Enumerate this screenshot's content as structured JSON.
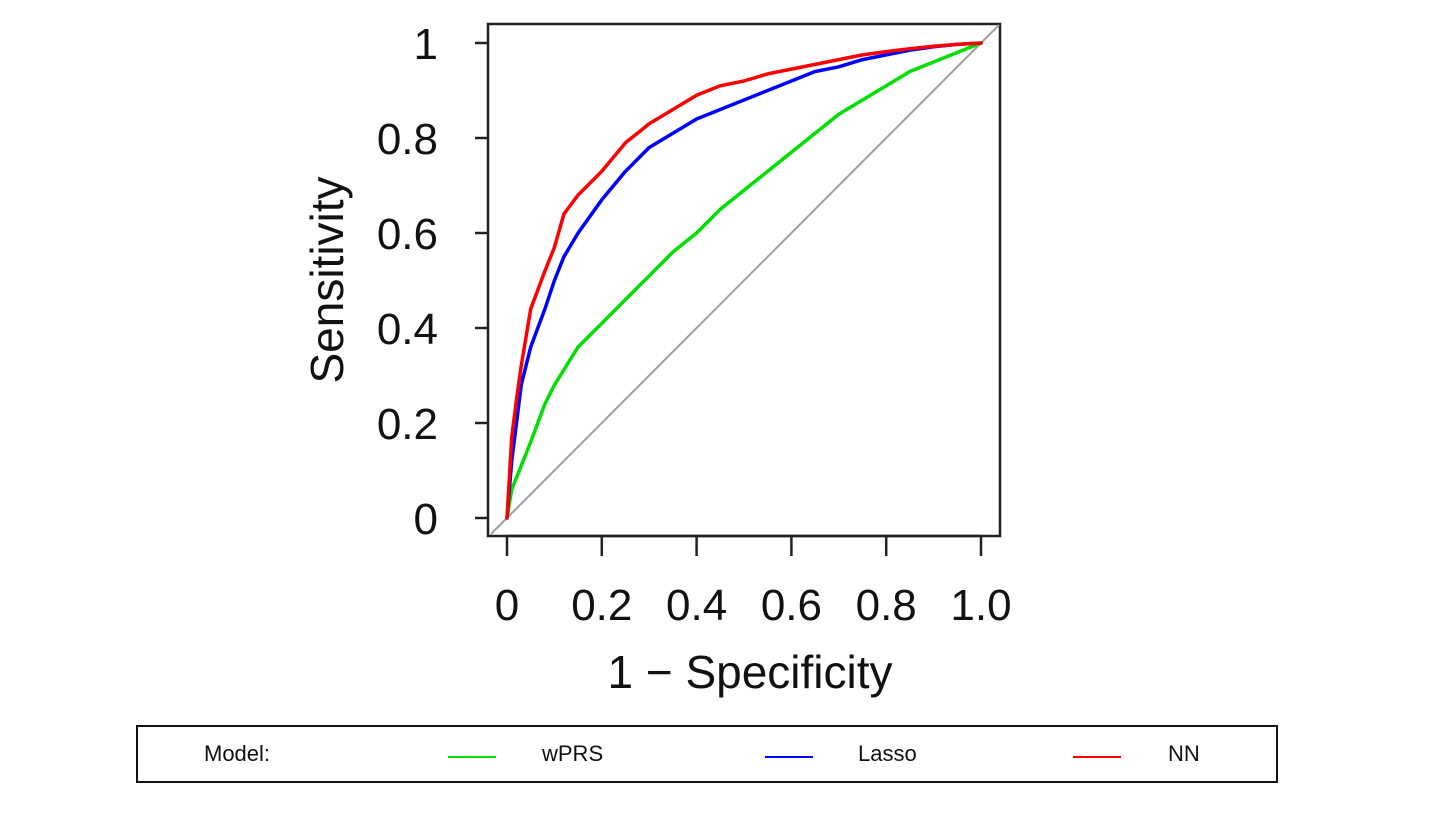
{
  "chart_data": {
    "type": "line",
    "title": "",
    "xlabel": "1 − Specificity",
    "ylabel": "Sensitivity",
    "xlim": [
      0,
      1
    ],
    "ylim": [
      0,
      1
    ],
    "x_ticks": [
      0,
      0.2,
      0.4,
      0.6,
      0.8,
      1.0
    ],
    "x_tick_labels": [
      "0",
      "0.2",
      "0.4",
      "0.6",
      "0.8",
      "1.0"
    ],
    "y_ticks": [
      0,
      0.2,
      0.4,
      0.6,
      0.8,
      1
    ],
    "y_tick_labels": [
      "0",
      "0.2",
      "0.4",
      "0.6",
      "0.8",
      "1"
    ],
    "grid": false,
    "legend_placement": "bottom",
    "reference_line": {
      "x": [
        0,
        1
      ],
      "y": [
        0,
        1
      ],
      "color": "#a0a0a0"
    },
    "series": [
      {
        "name": "wPRS",
        "color": "#00e000",
        "x": [
          0,
          0.01,
          0.03,
          0.05,
          0.08,
          0.1,
          0.15,
          0.2,
          0.25,
          0.3,
          0.35,
          0.4,
          0.45,
          0.5,
          0.55,
          0.6,
          0.65,
          0.7,
          0.75,
          0.8,
          0.85,
          0.9,
          0.95,
          1.0
        ],
        "y": [
          0,
          0.06,
          0.11,
          0.16,
          0.24,
          0.28,
          0.36,
          0.41,
          0.46,
          0.51,
          0.56,
          0.6,
          0.65,
          0.69,
          0.73,
          0.77,
          0.81,
          0.85,
          0.88,
          0.91,
          0.94,
          0.96,
          0.98,
          1.0
        ]
      },
      {
        "name": "Lasso",
        "color": "#0000ff",
        "x": [
          0,
          0.01,
          0.02,
          0.03,
          0.05,
          0.08,
          0.1,
          0.12,
          0.15,
          0.2,
          0.25,
          0.3,
          0.35,
          0.4,
          0.45,
          0.5,
          0.55,
          0.6,
          0.65,
          0.7,
          0.75,
          0.8,
          0.85,
          0.9,
          0.95,
          1.0
        ],
        "y": [
          0,
          0.12,
          0.2,
          0.28,
          0.36,
          0.44,
          0.5,
          0.55,
          0.6,
          0.67,
          0.73,
          0.78,
          0.81,
          0.84,
          0.86,
          0.88,
          0.9,
          0.92,
          0.94,
          0.95,
          0.965,
          0.975,
          0.985,
          0.992,
          0.997,
          1.0
        ]
      },
      {
        "name": "NN",
        "color": "#ff0000",
        "x": [
          0,
          0.01,
          0.02,
          0.03,
          0.05,
          0.08,
          0.1,
          0.12,
          0.15,
          0.2,
          0.25,
          0.3,
          0.35,
          0.4,
          0.45,
          0.5,
          0.55,
          0.6,
          0.65,
          0.7,
          0.75,
          0.8,
          0.85,
          0.9,
          0.95,
          1.0
        ],
        "y": [
          0,
          0.17,
          0.25,
          0.32,
          0.44,
          0.52,
          0.57,
          0.64,
          0.68,
          0.73,
          0.79,
          0.83,
          0.86,
          0.89,
          0.91,
          0.92,
          0.935,
          0.945,
          0.955,
          0.965,
          0.975,
          0.982,
          0.988,
          0.993,
          0.997,
          1.0
        ]
      }
    ]
  },
  "legend": {
    "title": "Model:",
    "items": [
      {
        "label": "wPRS",
        "color": "#00e000"
      },
      {
        "label": "Lasso",
        "color": "#0000ff"
      },
      {
        "label": "NN",
        "color": "#ff0000"
      }
    ]
  }
}
